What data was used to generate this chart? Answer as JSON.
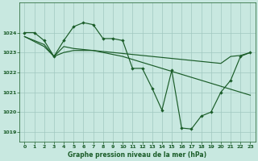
{
  "title": "Graphe pression niveau de la mer (hPa)",
  "bg_color": "#c8e8e0",
  "grid_color": "#a0c8c0",
  "line_color": "#1a5c28",
  "xlim": [
    -0.5,
    23.5
  ],
  "ylim": [
    1018.5,
    1025.5
  ],
  "yticks": [
    1019,
    1020,
    1021,
    1022,
    1023,
    1024
  ],
  "xticks": [
    0,
    1,
    2,
    3,
    4,
    5,
    6,
    7,
    8,
    9,
    10,
    11,
    12,
    13,
    14,
    15,
    16,
    17,
    18,
    19,
    20,
    21,
    22,
    23
  ],
  "series1": [
    [
      0,
      1024.0
    ],
    [
      1,
      1024.0
    ],
    [
      2,
      1023.6
    ],
    [
      3,
      1022.8
    ],
    [
      4,
      1023.6
    ],
    [
      5,
      1024.3
    ],
    [
      6,
      1024.5
    ],
    [
      7,
      1024.4
    ],
    [
      8,
      1023.7
    ],
    [
      9,
      1023.7
    ],
    [
      10,
      1023.6
    ],
    [
      11,
      1022.2
    ],
    [
      12,
      1022.2
    ],
    [
      13,
      1021.2
    ],
    [
      14,
      1020.1
    ],
    [
      15,
      1022.1
    ],
    [
      16,
      1019.2
    ],
    [
      17,
      1019.15
    ],
    [
      18,
      1019.8
    ],
    [
      19,
      1020.0
    ],
    [
      20,
      1021.0
    ],
    [
      21,
      1021.6
    ],
    [
      22,
      1022.8
    ],
    [
      23,
      1023.0
    ]
  ],
  "series2": [
    [
      0,
      1023.8
    ],
    [
      1,
      1023.55
    ],
    [
      2,
      1023.3
    ],
    [
      3,
      1022.8
    ],
    [
      4,
      1023.0
    ],
    [
      5,
      1023.1
    ],
    [
      6,
      1023.1
    ],
    [
      7,
      1023.1
    ],
    [
      8,
      1023.05
    ],
    [
      9,
      1023.0
    ],
    [
      10,
      1022.95
    ],
    [
      11,
      1022.9
    ],
    [
      12,
      1022.85
    ],
    [
      13,
      1022.8
    ],
    [
      14,
      1022.75
    ],
    [
      15,
      1022.7
    ],
    [
      16,
      1022.65
    ],
    [
      17,
      1022.6
    ],
    [
      18,
      1022.55
    ],
    [
      19,
      1022.5
    ],
    [
      20,
      1022.45
    ],
    [
      21,
      1022.8
    ],
    [
      22,
      1022.85
    ],
    [
      23,
      1023.0
    ]
  ],
  "series3": [
    [
      0,
      1023.8
    ],
    [
      1,
      1023.6
    ],
    [
      2,
      1023.4
    ],
    [
      3,
      1022.8
    ],
    [
      4,
      1023.3
    ],
    [
      5,
      1023.2
    ],
    [
      6,
      1023.15
    ],
    [
      7,
      1023.1
    ],
    [
      8,
      1023.0
    ],
    [
      9,
      1022.9
    ],
    [
      10,
      1022.8
    ],
    [
      11,
      1022.65
    ],
    [
      12,
      1022.5
    ],
    [
      13,
      1022.35
    ],
    [
      14,
      1022.2
    ],
    [
      15,
      1022.05
    ],
    [
      16,
      1021.9
    ],
    [
      17,
      1021.75
    ],
    [
      18,
      1021.6
    ],
    [
      19,
      1021.45
    ],
    [
      20,
      1021.3
    ],
    [
      21,
      1021.15
    ],
    [
      22,
      1021.0
    ],
    [
      23,
      1020.85
    ]
  ]
}
